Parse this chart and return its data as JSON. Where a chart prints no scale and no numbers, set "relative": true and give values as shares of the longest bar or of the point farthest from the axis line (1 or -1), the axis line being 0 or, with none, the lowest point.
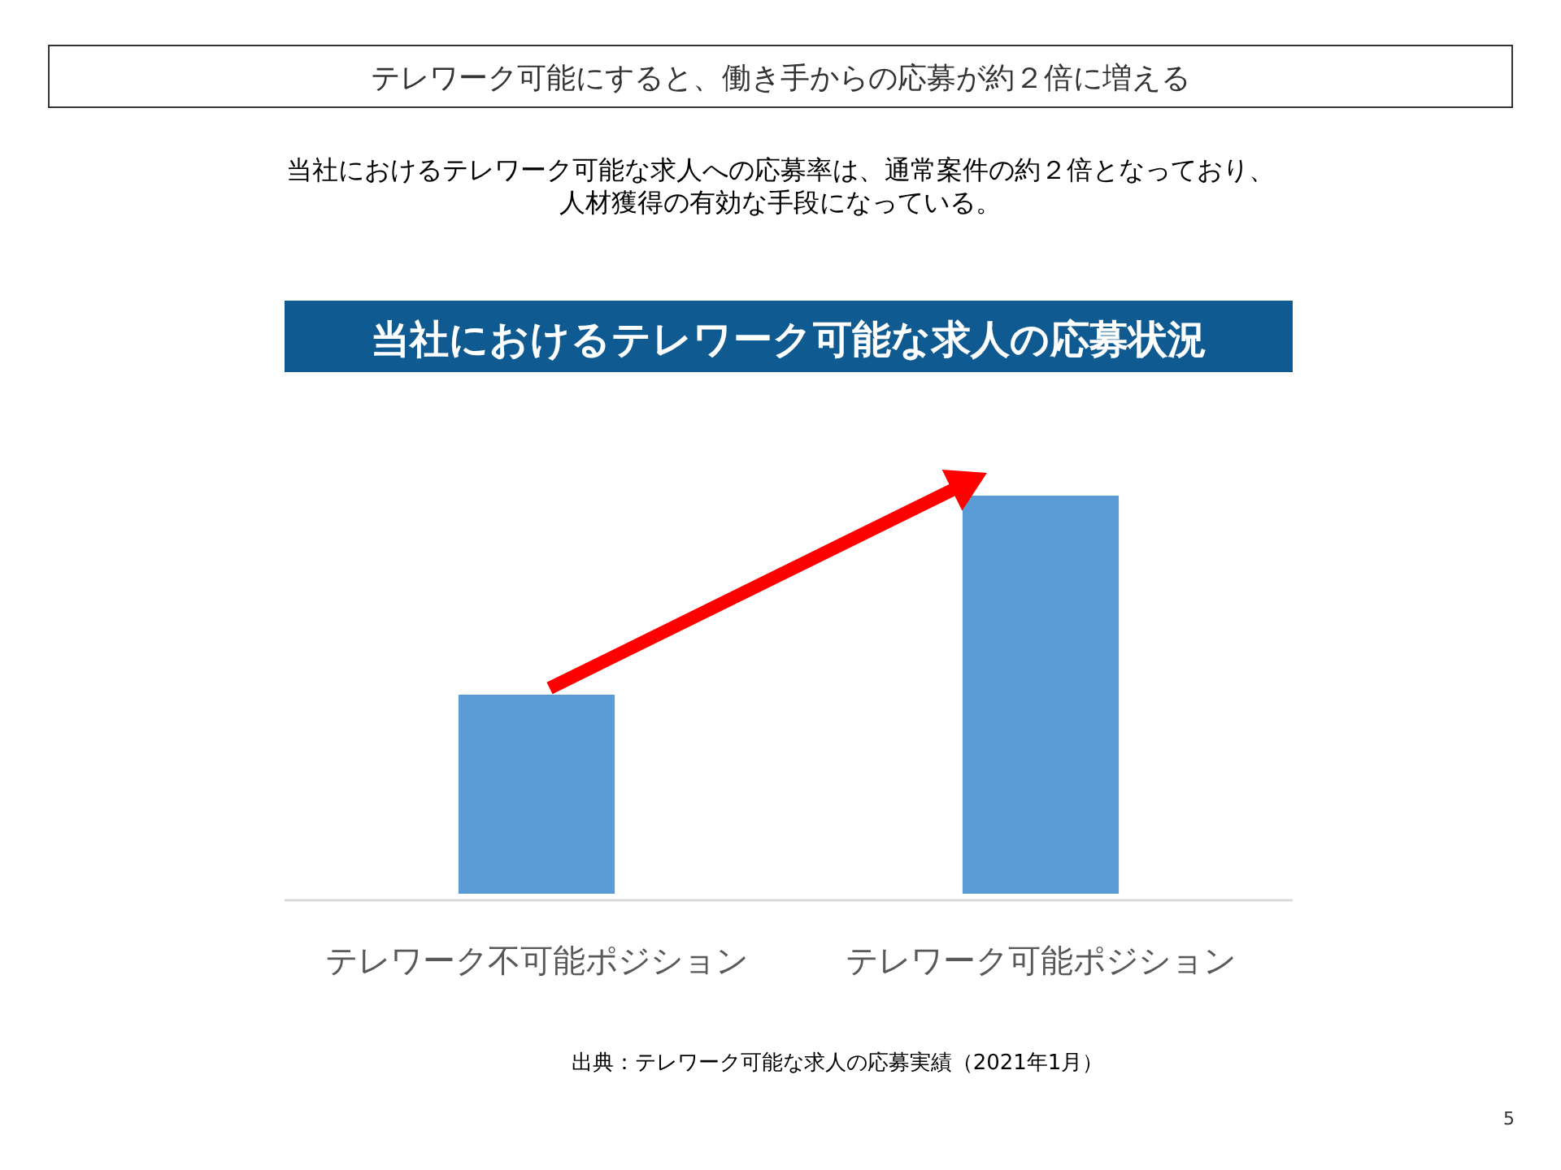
{
  "chart_data": {
    "type": "bar",
    "title": "当社におけるテレワーク可能な求人の応募状況",
    "categories": [
      "テレワーク不可能ポジション",
      "テレワーク可能ポジション"
    ],
    "values": [
      0.5,
      1
    ],
    "color": "#5b9bd5",
    "relative": true,
    "annotations": [
      "テレワーク可能にすると、働き手からの応募が約２倍に増える",
      "当社におけるテレワーク可能な求人への応募率は、通常案件の約２倍となっており、",
      "人材獲得の有効な手段になっている。",
      "出典：テレワーク可能な求人の応募実績（2021年1月）",
      "5"
    ]
  }
}
